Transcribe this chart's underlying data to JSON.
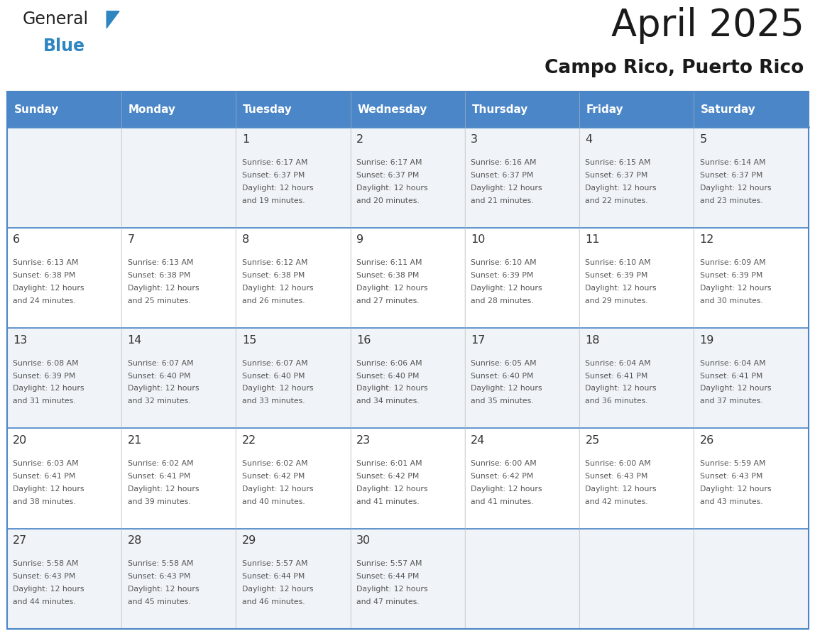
{
  "title": "April 2025",
  "subtitle": "Campo Rico, Puerto Rico",
  "days_of_week": [
    "Sunday",
    "Monday",
    "Tuesday",
    "Wednesday",
    "Thursday",
    "Friday",
    "Saturday"
  ],
  "header_bg": "#4A86C8",
  "header_text": "#FFFFFF",
  "cell_bg_odd": "#F0F4F8",
  "cell_bg_even": "#FFFFFF",
  "border_color": "#4A86C8",
  "row_line_color": "#4A86C8",
  "text_color": "#555555",
  "day_num_color": "#333333",
  "background": "#FFFFFF",
  "logo_general_color": "#222222",
  "logo_blue_color": "#2E86C1",
  "logo_triangle_color": "#2E86C1",
  "title_color": "#1a1a1a",
  "subtitle_color": "#1a1a1a",
  "weeks": [
    [
      {
        "day": null,
        "sunrise": null,
        "sunset": null,
        "daylight_min": null
      },
      {
        "day": null,
        "sunrise": null,
        "sunset": null,
        "daylight_min": null
      },
      {
        "day": 1,
        "sunrise": "6:17 AM",
        "sunset": "6:37 PM",
        "daylight_min": 19
      },
      {
        "day": 2,
        "sunrise": "6:17 AM",
        "sunset": "6:37 PM",
        "daylight_min": 20
      },
      {
        "day": 3,
        "sunrise": "6:16 AM",
        "sunset": "6:37 PM",
        "daylight_min": 21
      },
      {
        "day": 4,
        "sunrise": "6:15 AM",
        "sunset": "6:37 PM",
        "daylight_min": 22
      },
      {
        "day": 5,
        "sunrise": "6:14 AM",
        "sunset": "6:37 PM",
        "daylight_min": 23
      }
    ],
    [
      {
        "day": 6,
        "sunrise": "6:13 AM",
        "sunset": "6:38 PM",
        "daylight_min": 24
      },
      {
        "day": 7,
        "sunrise": "6:13 AM",
        "sunset": "6:38 PM",
        "daylight_min": 25
      },
      {
        "day": 8,
        "sunrise": "6:12 AM",
        "sunset": "6:38 PM",
        "daylight_min": 26
      },
      {
        "day": 9,
        "sunrise": "6:11 AM",
        "sunset": "6:38 PM",
        "daylight_min": 27
      },
      {
        "day": 10,
        "sunrise": "6:10 AM",
        "sunset": "6:39 PM",
        "daylight_min": 28
      },
      {
        "day": 11,
        "sunrise": "6:10 AM",
        "sunset": "6:39 PM",
        "daylight_min": 29
      },
      {
        "day": 12,
        "sunrise": "6:09 AM",
        "sunset": "6:39 PM",
        "daylight_min": 30
      }
    ],
    [
      {
        "day": 13,
        "sunrise": "6:08 AM",
        "sunset": "6:39 PM",
        "daylight_min": 31
      },
      {
        "day": 14,
        "sunrise": "6:07 AM",
        "sunset": "6:40 PM",
        "daylight_min": 32
      },
      {
        "day": 15,
        "sunrise": "6:07 AM",
        "sunset": "6:40 PM",
        "daylight_min": 33
      },
      {
        "day": 16,
        "sunrise": "6:06 AM",
        "sunset": "6:40 PM",
        "daylight_min": 34
      },
      {
        "day": 17,
        "sunrise": "6:05 AM",
        "sunset": "6:40 PM",
        "daylight_min": 35
      },
      {
        "day": 18,
        "sunrise": "6:04 AM",
        "sunset": "6:41 PM",
        "daylight_min": 36
      },
      {
        "day": 19,
        "sunrise": "6:04 AM",
        "sunset": "6:41 PM",
        "daylight_min": 37
      }
    ],
    [
      {
        "day": 20,
        "sunrise": "6:03 AM",
        "sunset": "6:41 PM",
        "daylight_min": 38
      },
      {
        "day": 21,
        "sunrise": "6:02 AM",
        "sunset": "6:41 PM",
        "daylight_min": 39
      },
      {
        "day": 22,
        "sunrise": "6:02 AM",
        "sunset": "6:42 PM",
        "daylight_min": 40
      },
      {
        "day": 23,
        "sunrise": "6:01 AM",
        "sunset": "6:42 PM",
        "daylight_min": 41
      },
      {
        "day": 24,
        "sunrise": "6:00 AM",
        "sunset": "6:42 PM",
        "daylight_min": 41
      },
      {
        "day": 25,
        "sunrise": "6:00 AM",
        "sunset": "6:43 PM",
        "daylight_min": 42
      },
      {
        "day": 26,
        "sunrise": "5:59 AM",
        "sunset": "6:43 PM",
        "daylight_min": 43
      }
    ],
    [
      {
        "day": 27,
        "sunrise": "5:58 AM",
        "sunset": "6:43 PM",
        "daylight_min": 44
      },
      {
        "day": 28,
        "sunrise": "5:58 AM",
        "sunset": "6:43 PM",
        "daylight_min": 45
      },
      {
        "day": 29,
        "sunrise": "5:57 AM",
        "sunset": "6:44 PM",
        "daylight_min": 46
      },
      {
        "day": 30,
        "sunrise": "5:57 AM",
        "sunset": "6:44 PM",
        "daylight_min": 47
      },
      {
        "day": null,
        "sunrise": null,
        "sunset": null,
        "daylight_min": null
      },
      {
        "day": null,
        "sunrise": null,
        "sunset": null,
        "daylight_min": null
      },
      {
        "day": null,
        "sunrise": null,
        "sunset": null,
        "daylight_min": null
      }
    ]
  ]
}
